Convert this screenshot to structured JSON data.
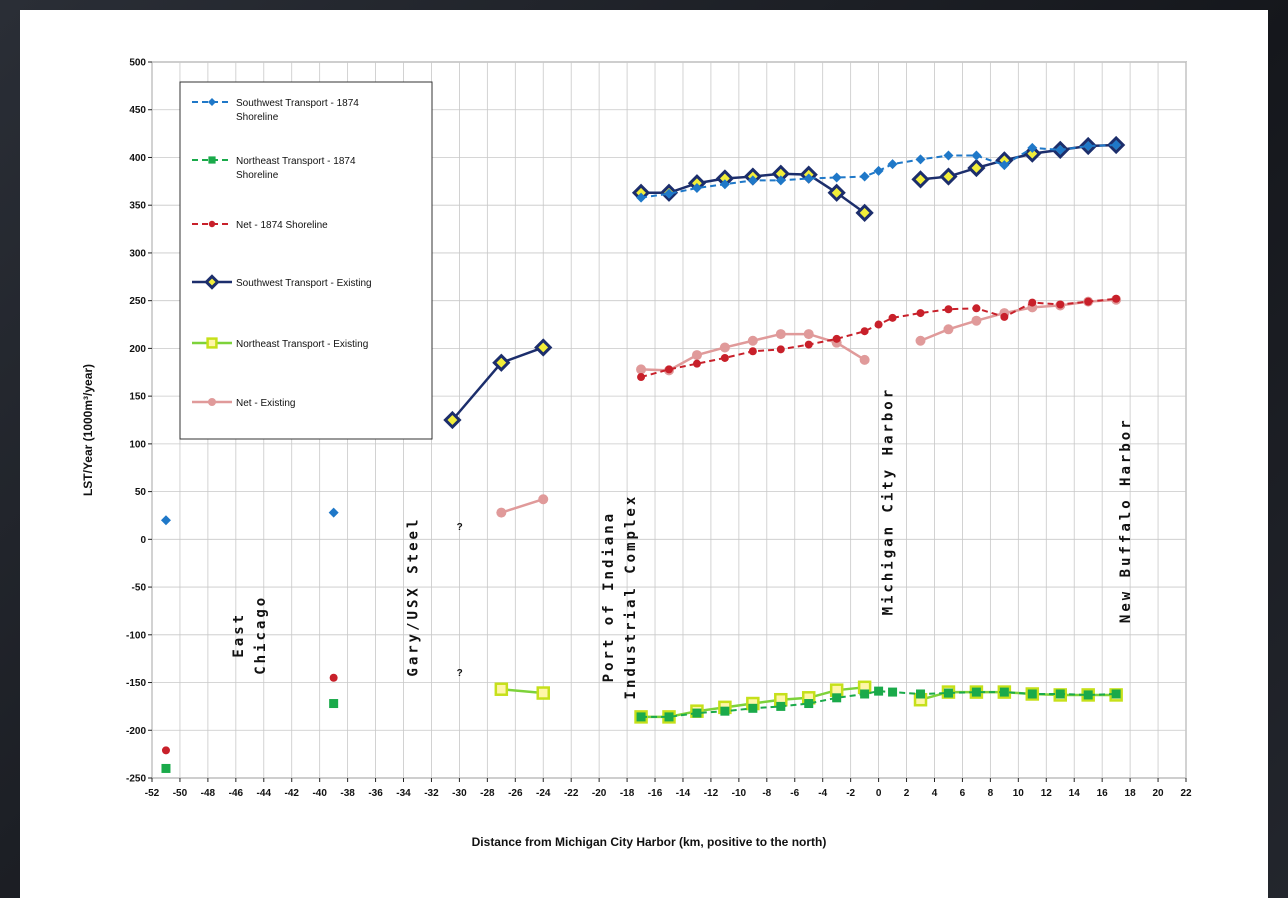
{
  "chart_data": {
    "type": "line",
    "xlabel": "Distance from Michigan City Harbor (km, positive to the north)",
    "ylabel": "LST/Year (1000m³/year)",
    "xlim": [
      -52,
      22
    ],
    "ylim": [
      -250,
      500
    ],
    "xticks": [
      -52,
      -50,
      -48,
      -46,
      -44,
      -42,
      -40,
      -38,
      -36,
      -34,
      -32,
      -30,
      -28,
      -26,
      -24,
      -22,
      -20,
      -18,
      -16,
      -14,
      -12,
      -10,
      -8,
      -6,
      -4,
      -2,
      0,
      2,
      4,
      6,
      8,
      10,
      12,
      14,
      16,
      18,
      20,
      22
    ],
    "yticks": [
      -250,
      -200,
      -150,
      -100,
      -50,
      0,
      50,
      100,
      150,
      200,
      250,
      300,
      350,
      400,
      450,
      500
    ],
    "grid": true,
    "legend_position": "top-left",
    "series": [
      {
        "name": "Southwest Transport - 1874\nShoreline",
        "color": "#1f78c8",
        "style": "dashed",
        "marker": "diamond",
        "segments": [
          [
            [
              -51,
              20
            ]
          ],
          [
            [
              -39,
              28
            ]
          ],
          [
            [
              -17,
              358
            ],
            [
              -15,
              362
            ],
            [
              -13,
              368
            ],
            [
              -11,
              372
            ],
            [
              -9,
              376
            ],
            [
              -7,
              376
            ],
            [
              -5,
              378
            ],
            [
              -3,
              379
            ],
            [
              -1,
              380
            ],
            [
              0,
              386
            ],
            [
              1,
              393
            ],
            [
              3,
              398
            ],
            [
              5,
              402
            ],
            [
              7,
              402
            ],
            [
              9,
              392
            ],
            [
              11,
              410
            ],
            [
              13,
              408
            ],
            [
              15,
              412
            ],
            [
              17,
              413
            ]
          ]
        ]
      },
      {
        "name": "Northeast Transport - 1874\nShoreline",
        "color": "#1aaa4a",
        "style": "dashed",
        "marker": "square",
        "segments": [
          [
            [
              -51,
              -240
            ]
          ],
          [
            [
              -39,
              -172
            ]
          ],
          [
            [
              -17,
              -186
            ],
            [
              -15,
              -186
            ],
            [
              -13,
              -182
            ],
            [
              -11,
              -180
            ],
            [
              -9,
              -177
            ],
            [
              -7,
              -175
            ],
            [
              -5,
              -172
            ],
            [
              -3,
              -166
            ],
            [
              -1,
              -162
            ],
            [
              0,
              -159
            ],
            [
              1,
              -160
            ],
            [
              3,
              -162
            ],
            [
              5,
              -161
            ],
            [
              7,
              -160
            ],
            [
              9,
              -160
            ],
            [
              11,
              -162
            ],
            [
              13,
              -162
            ],
            [
              15,
              -163
            ],
            [
              17,
              -162
            ]
          ]
        ]
      },
      {
        "name": "Net - 1874 Shoreline",
        "color": "#c8202a",
        "style": "dashed",
        "marker": "circle",
        "segments": [
          [
            [
              -51,
              -221
            ]
          ],
          [
            [
              -39,
              -145
            ]
          ],
          [
            [
              -17,
              170
            ],
            [
              -15,
              178
            ],
            [
              -13,
              184
            ],
            [
              -11,
              190
            ],
            [
              -9,
              197
            ],
            [
              -7,
              199
            ],
            [
              -5,
              204
            ],
            [
              -3,
              210
            ],
            [
              -1,
              218
            ],
            [
              0,
              225
            ],
            [
              1,
              232
            ],
            [
              3,
              237
            ],
            [
              5,
              241
            ],
            [
              7,
              242
            ],
            [
              9,
              233
            ],
            [
              11,
              248
            ],
            [
              13,
              246
            ],
            [
              15,
              249
            ],
            [
              17,
              252
            ]
          ]
        ]
      },
      {
        "name": "Southwest Transport - Existing",
        "color": "#1c2e6c",
        "style": "solid",
        "marker": "diamond-yellow",
        "segments": [
          [
            [
              -30.5,
              125
            ],
            [
              -27,
              185
            ],
            [
              -24,
              201
            ]
          ],
          [
            [
              -17,
              363
            ],
            [
              -15,
              363
            ],
            [
              -13,
              373
            ],
            [
              -11,
              378
            ],
            [
              -9,
              380
            ],
            [
              -7,
              383
            ],
            [
              -5,
              382
            ],
            [
              -3,
              363
            ],
            [
              -1,
              342
            ]
          ],
          [
            [
              3,
              377
            ],
            [
              5,
              380
            ],
            [
              7,
              389
            ],
            [
              9,
              397
            ],
            [
              11,
              404
            ],
            [
              13,
              408
            ],
            [
              15,
              412
            ],
            [
              17,
              413
            ]
          ]
        ]
      },
      {
        "name": "Northeast Transport - Existing",
        "color": "#7dd23a",
        "style": "solid",
        "marker": "square-yellow",
        "segments": [
          [
            [
              -27,
              -157
            ],
            [
              -24,
              -161
            ]
          ],
          [
            [
              -17,
              -186
            ],
            [
              -15,
              -186
            ],
            [
              -13,
              -180
            ],
            [
              -11,
              -176
            ],
            [
              -9,
              -172
            ],
            [
              -7,
              -168
            ],
            [
              -5,
              -166
            ],
            [
              -3,
              -158
            ],
            [
              -1,
              -155
            ]
          ],
          [
            [
              3,
              -168
            ],
            [
              5,
              -160
            ],
            [
              7,
              -160
            ],
            [
              9,
              -160
            ],
            [
              11,
              -162
            ],
            [
              13,
              -163
            ],
            [
              15,
              -163
            ],
            [
              17,
              -163
            ]
          ]
        ]
      },
      {
        "name": "Net - Existing",
        "color": "#e09a9a",
        "style": "solid",
        "marker": "circle-pink",
        "segments": [
          [
            [
              -27,
              28
            ],
            [
              -24,
              42
            ]
          ],
          [
            [
              -17,
              178
            ],
            [
              -15,
              177
            ],
            [
              -13,
              193
            ],
            [
              -11,
              201
            ],
            [
              -9,
              208
            ],
            [
              -7,
              215
            ],
            [
              -5,
              215
            ],
            [
              -3,
              206
            ],
            [
              -1,
              188
            ]
          ],
          [
            [
              3,
              208
            ],
            [
              5,
              220
            ],
            [
              7,
              229
            ],
            [
              9,
              237
            ],
            [
              11,
              243
            ],
            [
              13,
              245
            ],
            [
              15,
              249
            ],
            [
              17,
              251
            ]
          ]
        ]
      }
    ],
    "annotations": [
      {
        "text": "East\nChicago",
        "x": -45.5,
        "y": -100
      },
      {
        "text": "Gary/USX Steel",
        "x": -33,
        "y": -60
      },
      {
        "text": "?",
        "x": -30.2,
        "y": 10
      },
      {
        "text": "?",
        "x": -30.2,
        "y": -143
      },
      {
        "text": "Port of Indiana\nIndustrial Complex",
        "x": -19,
        "y": -60
      },
      {
        "text": "Michigan City Harbor",
        "x": 1,
        "y": 40
      },
      {
        "text": "New Buffalo Harbor",
        "x": 18,
        "y": 20
      }
    ]
  }
}
